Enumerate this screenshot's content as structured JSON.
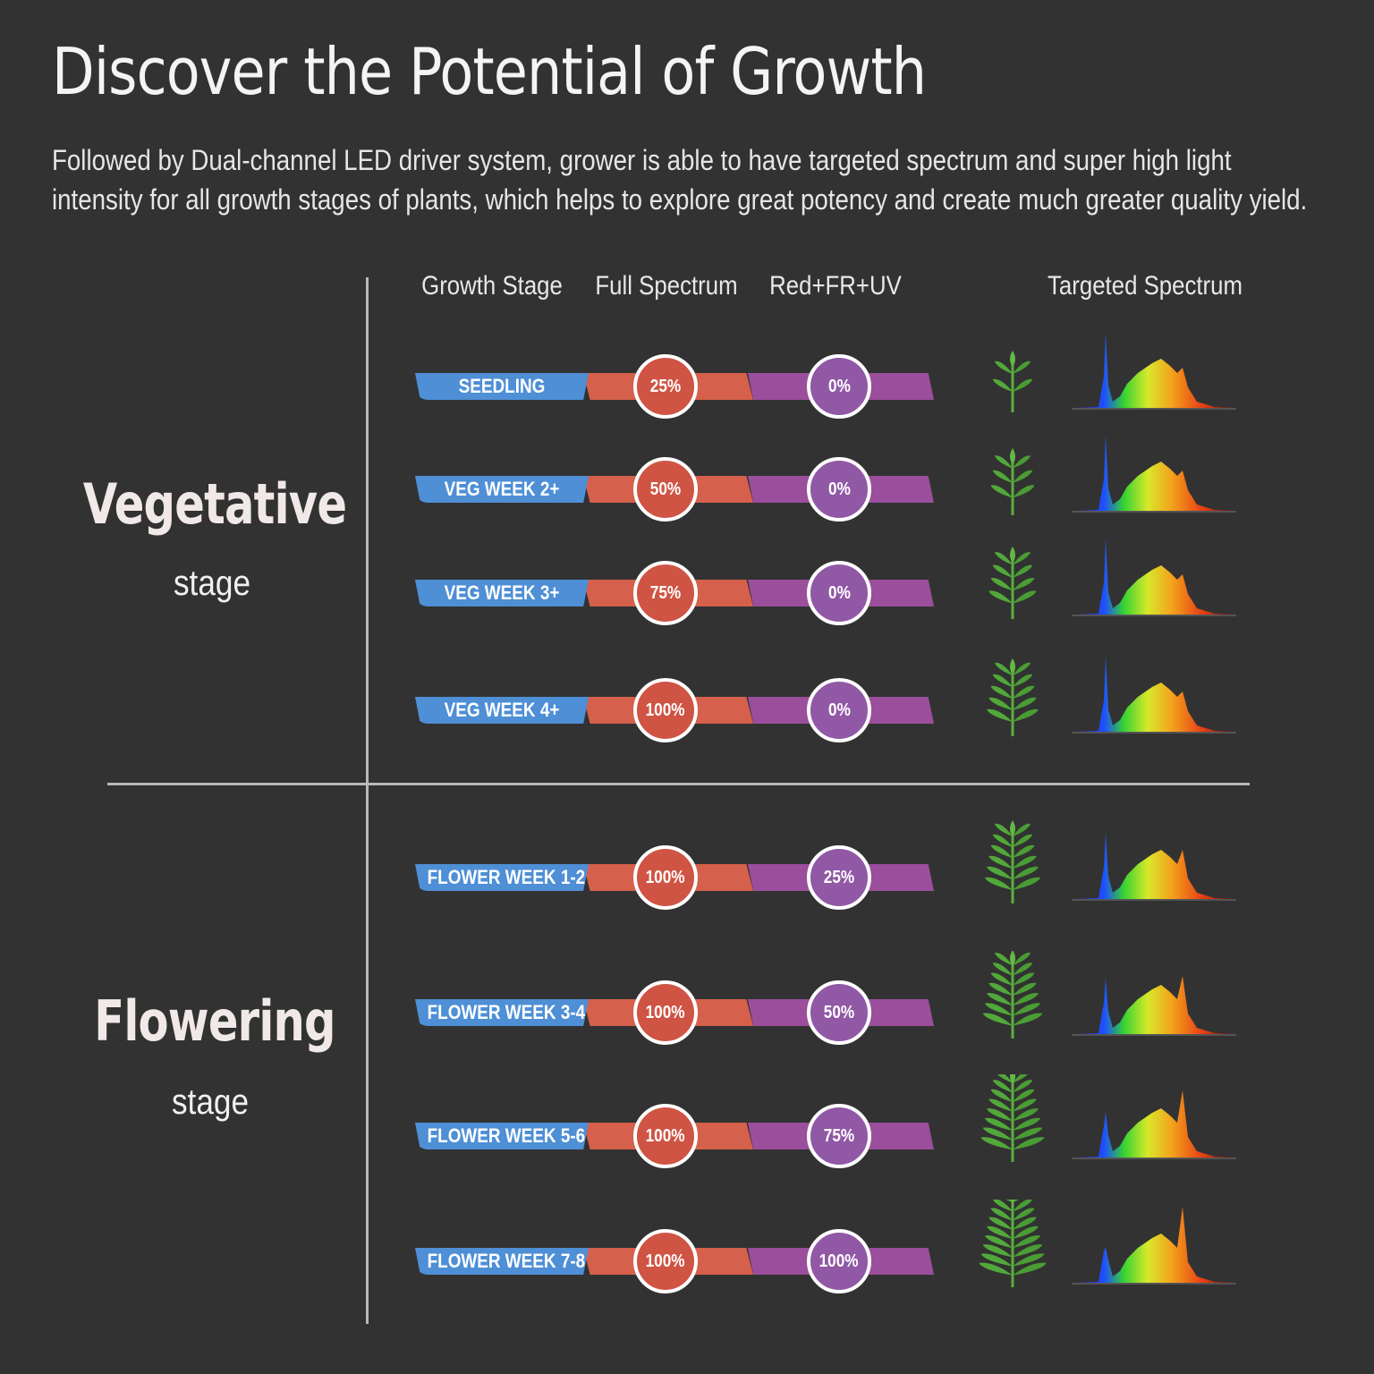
{
  "headline": "Discover the Potential of Growth",
  "intro": "Followed by Dual-channel LED driver system, grower is able to have targeted spectrum and super high light intensity for all growth stages of plants, which helps to explore great potency and create much greater quality yield.",
  "columns": {
    "stage": "Growth Stage",
    "full": "Full Spectrum",
    "red": "Red+FR+UV",
    "targeted": "Targeted Spectrum"
  },
  "vegetative": {
    "title": "Vegetative",
    "sub": "stage"
  },
  "flowering": {
    "title": "Flowering",
    "sub": "stage"
  },
  "rows": [
    {
      "label": "SEEDLING",
      "full": "25%",
      "red": "0%",
      "full_level": 0.25,
      "red_level": 0
    },
    {
      "label": "VEG WEEK 2+",
      "full": "50%",
      "red": "0%",
      "full_level": 0.5,
      "red_level": 0
    },
    {
      "label": "VEG WEEK 3+",
      "full": "75%",
      "red": "0%",
      "full_level": 0.75,
      "red_level": 0
    },
    {
      "label": "VEG WEEK 4+",
      "full": "100%",
      "red": "0%",
      "full_level": 1,
      "red_level": 0
    },
    {
      "label": "FLOWER WEEK  1-2",
      "full": "100%",
      "red": "25%",
      "full_level": 1,
      "red_level": 0.25
    },
    {
      "label": "FLOWER WEEK 3-4",
      "full": "100%",
      "red": "50%",
      "full_level": 1,
      "red_level": 0.5
    },
    {
      "label": "FLOWER WEEK 5-6",
      "full": "100%",
      "red": "75%",
      "full_level": 1,
      "red_level": 0.75
    },
    {
      "label": "FLOWER WEEK 7-8",
      "full": "100%",
      "red": "100%",
      "full_level": 1,
      "red_level": 1
    }
  ],
  "colors": {
    "background": "#323232",
    "stage_bar": "#4e8fd6",
    "full_bar": "#d5604b",
    "red_bar": "#9b4e9c"
  },
  "icons": {
    "plant": "cannabis-plant-icon",
    "spectrum": "spectrum-graph-icon"
  }
}
